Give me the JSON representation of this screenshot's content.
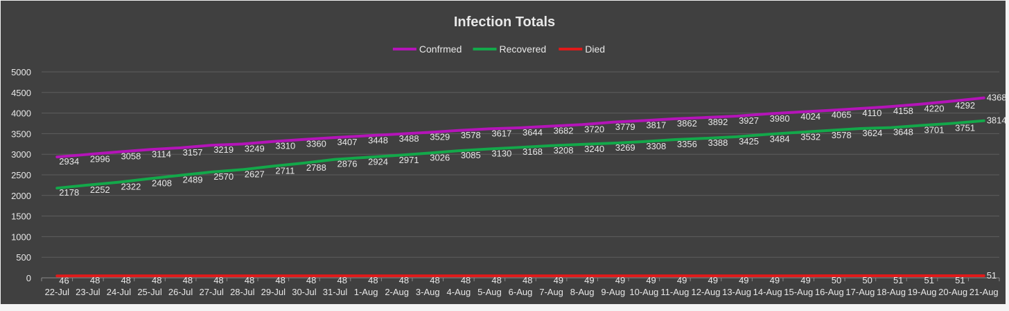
{
  "colors": {
    "background": "#404040",
    "gridline": "#5e5e5e",
    "text": "#e8e8e8",
    "confirmed": "#b414b8",
    "recovered": "#13a84a",
    "died": "#e01a1a"
  },
  "chart_data": {
    "type": "line",
    "title": "Infection Totals",
    "legend_position": "top",
    "grid": true,
    "ylim": [
      0,
      5000
    ],
    "yticks": [
      0,
      500,
      1000,
      1500,
      2000,
      2500,
      3000,
      3500,
      4000,
      4500,
      5000
    ],
    "categories": [
      "22-Jul",
      "23-Jul",
      "24-Jul",
      "25-Jul",
      "26-Jul",
      "27-Jul",
      "28-Jul",
      "29-Jul",
      "30-Jul",
      "31-Jul",
      "1-Aug",
      "2-Aug",
      "3-Aug",
      "4-Aug",
      "5-Aug",
      "6-Aug",
      "7-Aug",
      "8-Aug",
      "9-Aug",
      "10-Aug",
      "11-Aug",
      "12-Aug",
      "13-Aug",
      "14-Aug",
      "15-Aug",
      "16-Aug",
      "17-Aug",
      "18-Aug",
      "19-Aug",
      "20-Aug",
      "21-Aug"
    ],
    "series": [
      {
        "name": "Confrmed",
        "color_key": "confirmed",
        "values": [
          2934,
          2996,
          3058,
          3114,
          3157,
          3219,
          3249,
          3310,
          3360,
          3407,
          3448,
          3488,
          3529,
          3578,
          3617,
          3644,
          3682,
          3720,
          3779,
          3817,
          3862,
          3892,
          3927,
          3980,
          4024,
          4065,
          4110,
          4158,
          4220,
          4292,
          4368
        ]
      },
      {
        "name": "Recovered",
        "color_key": "recovered",
        "values": [
          2178,
          2252,
          2322,
          2408,
          2489,
          2570,
          2627,
          2711,
          2788,
          2876,
          2924,
          2971,
          3026,
          3085,
          3130,
          3168,
          3208,
          3240,
          3269,
          3308,
          3356,
          3388,
          3425,
          3484,
          3532,
          3578,
          3624,
          3648,
          3701,
          3751,
          3814
        ]
      },
      {
        "name": "Died",
        "color_key": "died",
        "values": [
          46,
          48,
          48,
          48,
          48,
          48,
          48,
          48,
          48,
          48,
          48,
          48,
          48,
          48,
          48,
          48,
          49,
          49,
          49,
          49,
          49,
          49,
          49,
          49,
          49,
          50,
          50,
          51,
          51,
          51,
          51
        ]
      }
    ]
  }
}
